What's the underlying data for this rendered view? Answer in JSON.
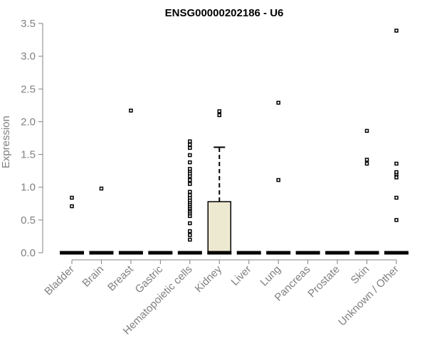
{
  "chart_data": {
    "type": "boxplot",
    "title": "ENSG00000202186 - U6",
    "ylabel": "Expression",
    "ylim": [
      0,
      3.5
    ],
    "yticks": [
      "0.0",
      "0.5",
      "1.0",
      "1.5",
      "2.0",
      "2.5",
      "3.0",
      "3.5"
    ],
    "categories": [
      "Bladder",
      "Brain",
      "Breast",
      "Gastric",
      "Hematopoietic cells",
      "Kidney",
      "Liver",
      "Lung",
      "Pancreas",
      "Prostate",
      "Skin",
      "Unknown / Other"
    ],
    "boxes": [
      {
        "category": "Bladder",
        "q1": 0,
        "median": 0,
        "q3": 0,
        "whisker_low": 0,
        "whisker_high": 0,
        "outliers": [
          0.71,
          0.84
        ]
      },
      {
        "category": "Brain",
        "q1": 0,
        "median": 0,
        "q3": 0,
        "whisker_low": 0,
        "whisker_high": 0,
        "outliers": [
          0.98
        ]
      },
      {
        "category": "Breast",
        "q1": 0,
        "median": 0,
        "q3": 0,
        "whisker_low": 0,
        "whisker_high": 0,
        "outliers": [
          2.17
        ]
      },
      {
        "category": "Gastric",
        "q1": 0,
        "median": 0,
        "q3": 0,
        "whisker_low": 0,
        "whisker_high": 0,
        "outliers": []
      },
      {
        "category": "Hematopoietic cells",
        "q1": 0,
        "median": 0,
        "q3": 0,
        "whisker_low": 0,
        "whisker_high": 0,
        "outliers": [
          0.2,
          0.27,
          0.33,
          0.45,
          0.56,
          0.6,
          0.63,
          0.66,
          0.68,
          0.71,
          0.74,
          0.77,
          0.8,
          0.84,
          0.88,
          0.93,
          1.05,
          1.11,
          1.17,
          1.21,
          1.25,
          1.28,
          1.38,
          1.49,
          1.6,
          1.65,
          1.7
        ]
      },
      {
        "category": "Kidney",
        "q1": 0,
        "median": 0,
        "q3": 0.78,
        "whisker_low": 0,
        "whisker_high": 1.61,
        "outliers": [
          2.1,
          2.16
        ]
      },
      {
        "category": "Liver",
        "q1": 0,
        "median": 0,
        "q3": 0,
        "whisker_low": 0,
        "whisker_high": 0,
        "outliers": []
      },
      {
        "category": "Lung",
        "q1": 0,
        "median": 0,
        "q3": 0,
        "whisker_low": 0,
        "whisker_high": 0,
        "outliers": [
          1.11,
          2.29
        ]
      },
      {
        "category": "Pancreas",
        "q1": 0,
        "median": 0,
        "q3": 0,
        "whisker_low": 0,
        "whisker_high": 0,
        "outliers": []
      },
      {
        "category": "Prostate",
        "q1": 0,
        "median": 0,
        "q3": 0,
        "whisker_low": 0,
        "whisker_high": 0,
        "outliers": []
      },
      {
        "category": "Skin",
        "q1": 0,
        "median": 0,
        "q3": 0,
        "whisker_low": 0,
        "whisker_high": 0,
        "outliers": [
          1.36,
          1.42,
          1.86
        ]
      },
      {
        "category": "Unknown / Other",
        "q1": 0,
        "median": 0,
        "q3": 0,
        "whisker_low": 0,
        "whisker_high": 0,
        "outliers": [
          0.5,
          0.84,
          1.15,
          1.2,
          1.23,
          1.36,
          3.39
        ]
      }
    ],
    "box_fill": "#ede8d0",
    "axis_color": "#808080",
    "grid": false
  }
}
